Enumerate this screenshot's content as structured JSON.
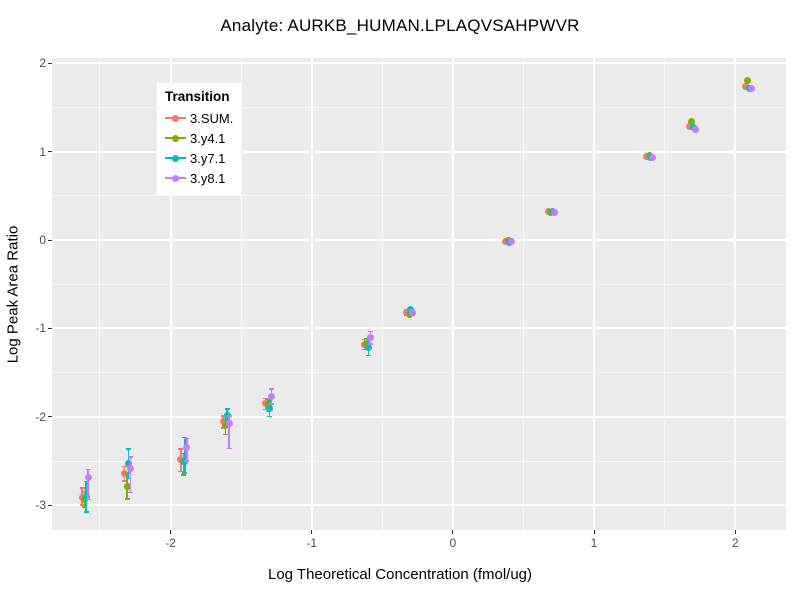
{
  "chart_data": {
    "type": "scatter",
    "title": "Analyte: AURKB_HUMAN.LPLAQVSAHPWVR",
    "xlabel": "Log Theoretical Concentration (fmol/ug)",
    "ylabel": "Log Peak Area Ratio",
    "xlim": [
      -2.84,
      2.36
    ],
    "ylim": [
      -3.28,
      2.06
    ],
    "x_major_ticks": [
      -2,
      -1,
      0,
      1,
      2
    ],
    "x_minor_ticks": [
      -2.5,
      -1.5,
      -0.5,
      0.5,
      1.5
    ],
    "y_major_ticks": [
      2,
      1,
      0,
      -1,
      -2,
      -3
    ],
    "y_minor_ticks": [
      1.5,
      0.5,
      -0.5,
      -1.5,
      -2.5
    ],
    "grid": true,
    "panel_bg": "#EBEBEB",
    "grid_color": "#FFFFFF",
    "tick_label_color": "#4D4D4D",
    "legend": {
      "title": "Transition",
      "position": "inside-top-left"
    },
    "x": [
      -2.602,
      -2.301,
      -1.903,
      -1.602,
      -1.301,
      -0.602,
      -0.301,
      0.398,
      0.699,
      1.398,
      1.699,
      2.097
    ],
    "series": [
      {
        "name": "3.SUM.",
        "color": "#F8766D",
        "points": [
          {
            "y": -2.91,
            "lo": -3.0,
            "hi": -2.8
          },
          {
            "y": -2.64,
            "lo": -2.73,
            "hi": -2.56
          },
          {
            "y": -2.48,
            "lo": -2.62,
            "hi": -2.36
          },
          {
            "y": -2.05,
            "lo": -2.13,
            "hi": -1.99
          },
          {
            "y": -1.85,
            "lo": -1.92,
            "hi": -1.79
          },
          {
            "y": -1.18,
            "lo": -1.24,
            "hi": -1.12
          },
          {
            "y": -0.82,
            "lo": -0.85,
            "hi": -0.79
          },
          {
            "y": -0.02,
            "lo": -0.02,
            "hi": -0.02
          },
          {
            "y": 0.32,
            "lo": 0.32,
            "hi": 0.32
          },
          {
            "y": 0.94,
            "lo": 0.94,
            "hi": 0.94
          },
          {
            "y": 1.29,
            "lo": 1.29,
            "hi": 1.29
          },
          {
            "y": 1.74,
            "lo": 1.74,
            "hi": 1.74
          }
        ]
      },
      {
        "name": "3.y4.1",
        "color": "#7CAE00",
        "points": [
          {
            "y": -2.93,
            "lo": -3.02,
            "hi": -2.84
          },
          {
            "y": -2.79,
            "lo": -2.93,
            "hi": -2.63
          },
          {
            "y": -2.51,
            "lo": -2.66,
            "hi": -2.41
          },
          {
            "y": -2.1,
            "lo": -2.2,
            "hi": -2.02
          },
          {
            "y": -1.86,
            "lo": -1.94,
            "hi": -1.8
          },
          {
            "y": -1.17,
            "lo": -1.24,
            "hi": -1.11
          },
          {
            "y": -0.84,
            "lo": -0.87,
            "hi": -0.81
          },
          {
            "y": -0.01,
            "lo": -0.01,
            "hi": -0.01
          },
          {
            "y": 0.31,
            "lo": 0.31,
            "hi": 0.31
          },
          {
            "y": 0.96,
            "lo": 0.96,
            "hi": 0.96
          },
          {
            "y": 1.34,
            "lo": 1.34,
            "hi": 1.34
          },
          {
            "y": 1.8,
            "lo": 1.8,
            "hi": 1.8
          }
        ]
      },
      {
        "name": "3.y7.1",
        "color": "#00BFC4",
        "points": [
          {
            "y": -2.9,
            "lo": -3.08,
            "hi": -2.73
          },
          {
            "y": -2.53,
            "lo": -2.7,
            "hi": -2.36
          },
          {
            "y": -2.5,
            "lo": -2.64,
            "hi": -2.23
          },
          {
            "y": -1.99,
            "lo": -2.08,
            "hi": -1.91
          },
          {
            "y": -1.9,
            "lo": -2.0,
            "hi": -1.82
          },
          {
            "y": -1.21,
            "lo": -1.31,
            "hi": -1.11
          },
          {
            "y": -0.79,
            "lo": -0.82,
            "hi": -0.76
          },
          {
            "y": -0.03,
            "lo": -0.03,
            "hi": -0.03
          },
          {
            "y": 0.32,
            "lo": 0.32,
            "hi": 0.32
          },
          {
            "y": 0.93,
            "lo": 0.93,
            "hi": 0.93
          },
          {
            "y": 1.27,
            "lo": 1.27,
            "hi": 1.27
          },
          {
            "y": 1.72,
            "lo": 1.72,
            "hi": 1.72
          }
        ]
      },
      {
        "name": "3.y8.1",
        "color": "#C77CFF",
        "points": [
          {
            "y": -2.69,
            "lo": -2.94,
            "hi": -2.59
          },
          {
            "y": -2.58,
            "lo": -2.86,
            "hi": -2.45
          },
          {
            "y": -2.35,
            "lo": -2.5,
            "hi": -2.24
          },
          {
            "y": -2.07,
            "lo": -2.36,
            "hi": -1.99
          },
          {
            "y": -1.77,
            "lo": -1.86,
            "hi": -1.68
          },
          {
            "y": -1.1,
            "lo": -1.18,
            "hi": -1.03
          },
          {
            "y": -0.82,
            "lo": -0.85,
            "hi": -0.79
          },
          {
            "y": -0.02,
            "lo": -0.02,
            "hi": -0.02
          },
          {
            "y": 0.31,
            "lo": 0.31,
            "hi": 0.31
          },
          {
            "y": 0.93,
            "lo": 0.93,
            "hi": 0.93
          },
          {
            "y": 1.25,
            "lo": 1.25,
            "hi": 1.25
          },
          {
            "y": 1.71,
            "lo": 1.71,
            "hi": 1.71
          }
        ]
      }
    ]
  }
}
